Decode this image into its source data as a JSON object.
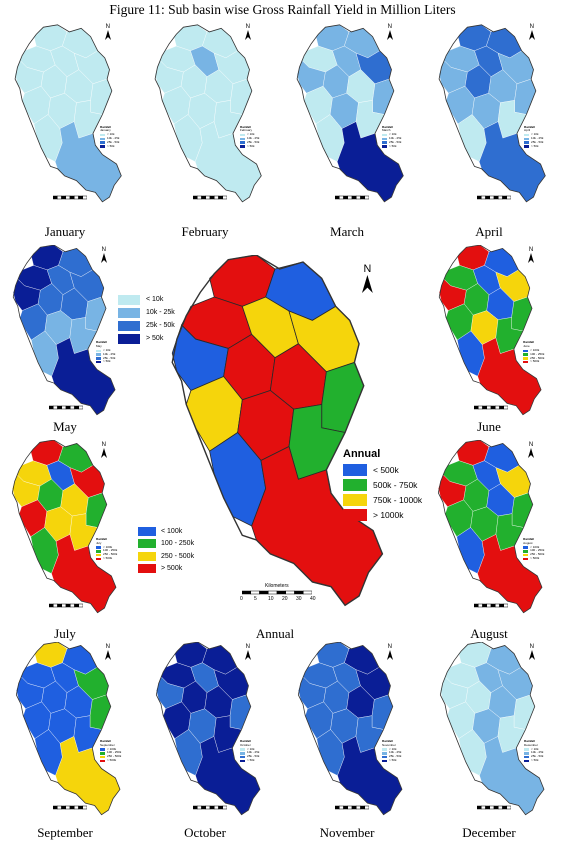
{
  "title": "Figure 11: Sub basin wise Gross Rainfall Yield in Million Liters",
  "colors": {
    "monthly": [
      "#bfeaf0",
      "#78b4e4",
      "#2f6ed0",
      "#0a1e96"
    ],
    "seasonal": [
      "#1f5fe0",
      "#22b02e",
      "#f5d50c",
      "#e30f0f"
    ]
  },
  "monthly_legend": {
    "items": [
      "< 10k",
      "10k - 25k",
      "25k - 50k",
      "> 50k"
    ]
  },
  "seasonal_legend": {
    "items": [
      "< 100k",
      "100 - 250k",
      "250 - 500k",
      "> 500k"
    ]
  },
  "annual_legend": {
    "title": "Annual",
    "items": [
      "< 500k",
      "500k - 750k",
      "750k - 1000k",
      "> 1000k"
    ]
  },
  "annual_scale": {
    "label": "Kilometers",
    "ticks": [
      "0",
      "5",
      "10",
      "20",
      "30",
      "40"
    ]
  },
  "north_label": "N",
  "maps": [
    {
      "caption": "January",
      "legend_title": "Rainfall",
      "legend_sub": "January",
      "scheme": "monthly",
      "fills": [
        0,
        0,
        0,
        0,
        0,
        0,
        0,
        0,
        0,
        0,
        0,
        0,
        0,
        1
      ]
    },
    {
      "caption": "February",
      "legend_title": "Rainfall",
      "legend_sub": "February",
      "scheme": "monthly",
      "fills": [
        0,
        0,
        0,
        1,
        0,
        0,
        0,
        0,
        0,
        0,
        0,
        0,
        0,
        0
      ]
    },
    {
      "caption": "March",
      "legend_title": "Rainfall",
      "legend_sub": "March",
      "scheme": "monthly",
      "fills": [
        1,
        1,
        0,
        1,
        2,
        1,
        1,
        0,
        1,
        0,
        1,
        0,
        0,
        3
      ]
    },
    {
      "caption": "April",
      "legend_title": "Rainfall",
      "legend_sub": "April",
      "scheme": "monthly",
      "fills": [
        2,
        2,
        1,
        2,
        1,
        1,
        2,
        1,
        1,
        1,
        1,
        0,
        0,
        2
      ]
    },
    {
      "caption": "May",
      "legend_title": "Rainfall",
      "legend_sub": "May",
      "scheme": "monthly",
      "fills": [
        3,
        2,
        3,
        2,
        2,
        3,
        2,
        2,
        1,
        2,
        1,
        1,
        1,
        3
      ]
    },
    {
      "caption": "June",
      "legend_title": "Rainfall",
      "legend_sub": "June",
      "scheme": "seasonal",
      "fills": [
        3,
        0,
        1,
        0,
        2,
        3,
        1,
        0,
        1,
        1,
        2,
        1,
        0,
        3
      ]
    },
    {
      "caption": "July",
      "legend_title": "Rainfall",
      "legend_sub": "July",
      "scheme": "seasonal",
      "fills": [
        3,
        1,
        2,
        0,
        3,
        2,
        1,
        2,
        1,
        3,
        2,
        2,
        1,
        3
      ]
    },
    {
      "caption": "August",
      "legend_title": "Rainfall",
      "legend_sub": "August",
      "scheme": "seasonal",
      "fills": [
        3,
        0,
        1,
        0,
        2,
        3,
        1,
        0,
        1,
        1,
        1,
        1,
        0,
        3
      ]
    },
    {
      "caption": "September",
      "legend_title": "Rainfall",
      "legend_sub": "September",
      "scheme": "seasonal",
      "fills": [
        2,
        0,
        0,
        0,
        1,
        0,
        0,
        0,
        1,
        0,
        0,
        0,
        0,
        2
      ]
    },
    {
      "caption": "October",
      "legend_title": "Rainfall",
      "legend_sub": "October",
      "scheme": "monthly",
      "fills": [
        3,
        3,
        3,
        2,
        3,
        2,
        3,
        3,
        2,
        3,
        2,
        3,
        2,
        3
      ]
    },
    {
      "caption": "November",
      "legend_title": "Rainfall",
      "legend_sub": "November",
      "scheme": "monthly",
      "fills": [
        2,
        3,
        2,
        2,
        3,
        2,
        2,
        3,
        2,
        2,
        2,
        2,
        2,
        3
      ]
    },
    {
      "caption": "December",
      "legend_title": "Rainfall",
      "legend_sub": "December",
      "scheme": "monthly",
      "fills": [
        0,
        1,
        0,
        1,
        1,
        0,
        0,
        1,
        0,
        0,
        1,
        0,
        0,
        1
      ]
    }
  ],
  "annual": {
    "caption": "Annual",
    "fills": [
      3,
      0,
      3,
      2,
      2,
      0,
      3,
      3,
      1,
      2,
      3,
      1,
      0,
      3
    ]
  }
}
